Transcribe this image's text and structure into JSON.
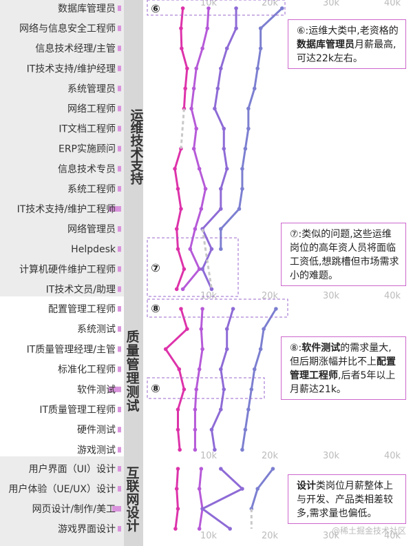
{
  "chart_data": {
    "type": "line",
    "x_ticks": [
      "10k",
      "20k",
      "30k",
      "40k"
    ],
    "x_tick_values": [
      10000,
      20000,
      30000,
      40000
    ],
    "xlim": [
      0,
      45000
    ],
    "grid": false,
    "series_colors": [
      "#dd33aa",
      "#b65ad8",
      "#8e6bd6",
      "#7c7fd0"
    ],
    "panels": [
      {
        "category": "运维技术支持",
        "roles": [
          "数据库管理员",
          "网络与信息安全工程师",
          "信息技术经理/主管",
          "IT技术支持/维护经理",
          "系统管理员",
          "网络工程师",
          "IT文档工程师",
          "ERP实施顾问",
          "信息技术专员",
          "系统工程师",
          "IT技术支持/维护工程师",
          "网络管理员",
          "Helpdesk",
          "计算机硬件维护工程师",
          "IT技术文员/助理"
        ],
        "demand": [
          0.03,
          0.02,
          0.02,
          0.02,
          0.02,
          0.03,
          0.02,
          0.02,
          0.02,
          0.02,
          0.14,
          0.02,
          0.02,
          0.02,
          0.02
        ],
        "series": [
          {
            "values": [
              5800,
              5500,
              5600,
              6500,
              6200,
              6000,
              null,
              5500,
              4500,
              5000,
              5500,
              4800,
              5000,
              6000,
              4800
            ]
          },
          {
            "values": [
              10000,
              9800,
              9000,
              8000,
              7600,
              7200,
              8000,
              7600,
              8500,
              9500,
              8800,
              7800,
              7000,
              8500,
              5800
            ]
          },
          {
            "values": [
              14500,
              14500,
              13000,
              12000,
              11500,
              11000,
              12500,
              12500,
              13000,
              12000,
              12000,
              9000,
              10500,
              9000,
              10500
            ]
          },
          {
            "values": [
              22000,
              18500,
              18500,
              18000,
              17500,
              16500,
              16500,
              16000,
              15500,
              15500,
              15000,
              12000,
              12000,
              null,
              null
            ]
          }
        ]
      },
      {
        "category": "质量管理测试",
        "roles": [
          "配置管理工程师",
          "系统测试",
          "IT质量管理经理/主管",
          "标准化工程师",
          "软件测试",
          "IT质量管理工程师",
          "硬件测试",
          "游戏测试"
        ],
        "demand": [
          0.02,
          0.02,
          0.02,
          0.02,
          0.14,
          0.02,
          0.02,
          0.02
        ],
        "series": [
          {
            "values": [
              5500,
              6500,
              3000,
              5200,
              6000,
              5000,
              5000,
              5300
            ]
          },
          {
            "values": [
              9000,
              8800,
              9000,
              8500,
              8000,
              7800,
              7800,
              7800
            ]
          },
          {
            "values": [
              14000,
              13000,
              13000,
              12000,
              12500,
              12000,
              10500,
              11000
            ]
          },
          {
            "values": [
              21000,
              19000,
              18500,
              17500,
              17000,
              16500,
              16000,
              15500
            ]
          }
        ]
      },
      {
        "category": "互联网设计",
        "roles": [
          "用户界面（UI）设计",
          "用户体验（UE/UX）设计",
          "网页设计/制作/美工",
          "游戏界面设计"
        ],
        "demand": [
          0.02,
          0.02,
          0.1,
          0.02
        ],
        "series": [
          {
            "values": [
              5000,
              4800,
              5000,
              4600
            ]
          },
          {
            "values": [
              8800,
              8500,
              9000,
              8500
            ]
          },
          {
            "values": [
              12000,
              15500,
              9000,
              13500
            ]
          },
          {
            "values": [
              20500,
              18000,
              17000,
              null
            ]
          }
        ]
      }
    ],
    "markers": [
      "⑥",
      "⑦",
      "⑧",
      "⑧"
    ],
    "dashed_connectors": [
      {
        "panel": 0,
        "series": 0,
        "from_role": 5,
        "to_role": 7
      },
      {
        "panel": 0,
        "series": 2,
        "from_role": 11,
        "to_role": 14
      },
      {
        "panel": 2,
        "series": 3,
        "from_role": 2,
        "to_role": 3
      }
    ]
  },
  "annotations": {
    "a6": {
      "p1": "⑥:运维大类中,老资格的",
      "b1": "数据库管理员",
      "p2": "月薪最高,可达22k左右。"
    },
    "a7": {
      "p1": "⑦:类似的问题,这些运维岗位的高年资人员将面临工资低,想跳槽但市场需求小的难题。"
    },
    "a8": {
      "p1": "⑧:",
      "b1": "软件测试",
      "p2": "的需求量大,但后期涨幅并比不上",
      "b2": "配置管理工程师",
      "p3": ",后者5年以上月薪达21k。"
    },
    "a9": {
      "b1": "设计",
      "p1": "类岗位月薪整体上与开发、产品类相差较多,需求量也偏低。"
    }
  },
  "watermark": "@稀土掘金技术社区"
}
